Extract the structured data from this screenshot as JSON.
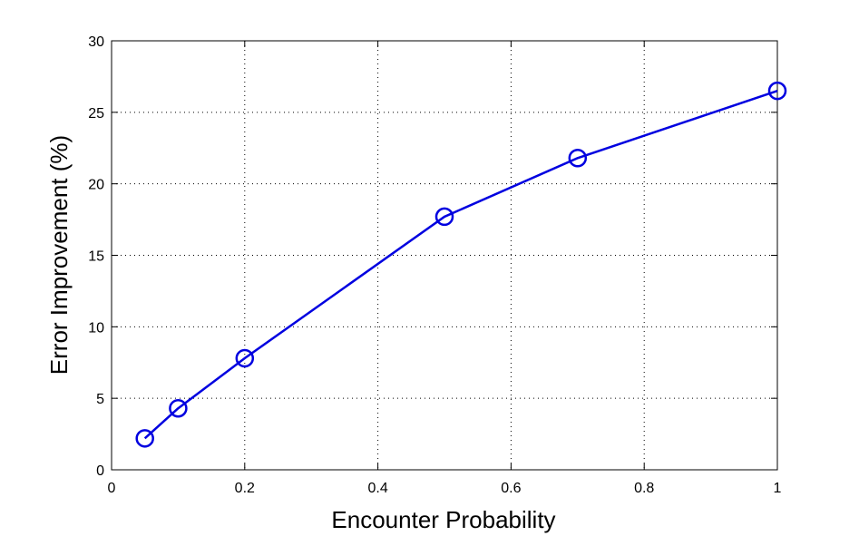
{
  "chart_data": {
    "type": "line",
    "title": "",
    "xlabel": "Encounter Probability",
    "ylabel": "Error Improvement (%)",
    "xlim": [
      0,
      1
    ],
    "ylim": [
      0,
      30
    ],
    "xticks": [
      0,
      0.2,
      0.4,
      0.6,
      0.8,
      1
    ],
    "xtick_labels": [
      "0",
      "0.2",
      "0.4",
      "0.6",
      "0.8",
      "1"
    ],
    "yticks": [
      0,
      5,
      10,
      15,
      20,
      25,
      30
    ],
    "ytick_labels": [
      "0",
      "5",
      "10",
      "15",
      "20",
      "25",
      "30"
    ],
    "grid": true,
    "legend": "none",
    "series": [
      {
        "color": "#0000e0",
        "marker": "circle",
        "x": [
          0.05,
          0.1,
          0.2,
          0.5,
          0.7,
          1.0
        ],
        "y": [
          2.2,
          4.3,
          7.8,
          17.7,
          21.8,
          26.5
        ]
      }
    ]
  }
}
